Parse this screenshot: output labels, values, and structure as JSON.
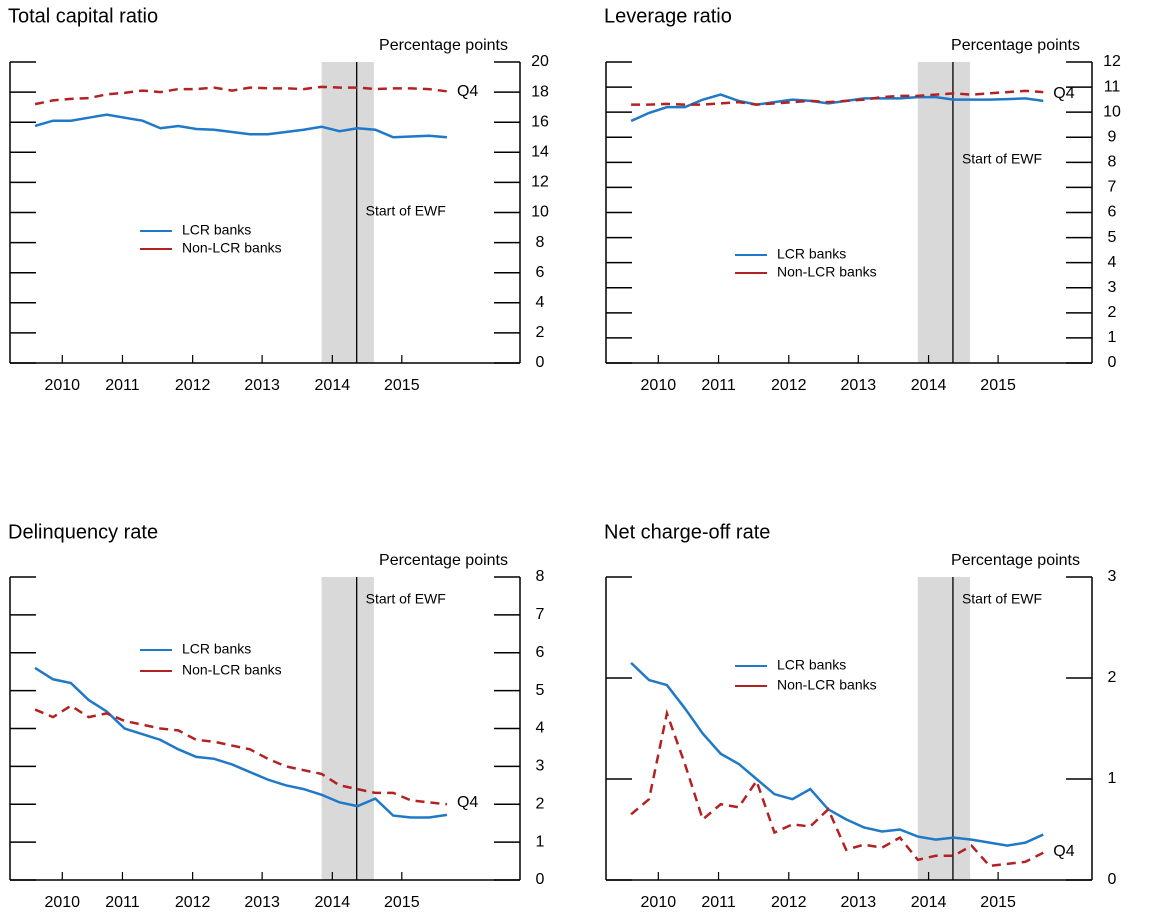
{
  "chart_data": [
    {
      "type": "line",
      "title": "Total capital ratio",
      "y_label": "Percentage points",
      "x": [
        2010,
        2010.25,
        2010.5,
        2010.75,
        2011,
        2011.25,
        2011.5,
        2011.75,
        2012,
        2012.25,
        2012.5,
        2012.75,
        2013,
        2013.25,
        2013.5,
        2013.75,
        2014,
        2014.25,
        2014.5,
        2014.75,
        2015,
        2015.25,
        2015.5,
        2015.75
      ],
      "series": [
        {
          "name": "LCR banks",
          "color": "#1f78c8",
          "style": "solid",
          "values": [
            15.75,
            16.1,
            16.1,
            16.3,
            16.5,
            16.3,
            16.1,
            15.6,
            15.75,
            15.55,
            15.5,
            15.35,
            15.2,
            15.2,
            15.35,
            15.5,
            15.7,
            15.4,
            15.6,
            15.5,
            15.0,
            15.05,
            15.1,
            15.0
          ]
        },
        {
          "name": "Non-LCR banks",
          "color": "#b22222",
          "style": "dashed",
          "values": [
            17.2,
            17.45,
            17.55,
            17.6,
            17.85,
            17.95,
            18.1,
            18.0,
            18.2,
            18.2,
            18.3,
            18.1,
            18.3,
            18.25,
            18.25,
            18.2,
            18.35,
            18.3,
            18.3,
            18.2,
            18.25,
            18.25,
            18.2,
            18.05
          ]
        }
      ],
      "xlim": [
        2009.65,
        2016.77
      ],
      "ylim": [
        0,
        20
      ],
      "yticks": [
        0,
        2,
        4,
        6,
        8,
        10,
        12,
        14,
        16,
        18,
        20
      ],
      "xticks": [
        {
          "value": 2010.38,
          "label": "2010"
        },
        {
          "value": 2011.22,
          "label": "2011"
        },
        {
          "value": 2012.2,
          "label": "2012"
        },
        {
          "value": 2013.17,
          "label": "2013"
        },
        {
          "value": 2014.15,
          "label": "2014"
        },
        {
          "value": 2015.12,
          "label": "2015"
        }
      ],
      "shaded_period": [
        2014.0,
        2014.73
      ],
      "event_x": 2014.49,
      "event_label": "Start of EWF",
      "end_label": "Q4"
    },
    {
      "type": "line",
      "title": "Leverage ratio",
      "y_label": "Percentage points",
      "x": [
        2010,
        2010.25,
        2010.5,
        2010.75,
        2011,
        2011.25,
        2011.5,
        2011.75,
        2012,
        2012.25,
        2012.5,
        2012.75,
        2013,
        2013.25,
        2013.5,
        2013.75,
        2014,
        2014.25,
        2014.5,
        2014.75,
        2015,
        2015.25,
        2015.5,
        2015.75
      ],
      "series": [
        {
          "name": "LCR banks",
          "color": "#1f78c8",
          "style": "solid",
          "values": [
            9.65,
            9.97,
            10.2,
            10.2,
            10.5,
            10.7,
            10.45,
            10.3,
            10.4,
            10.5,
            10.45,
            10.35,
            10.45,
            10.55,
            10.55,
            10.55,
            10.6,
            10.6,
            10.5,
            10.5,
            10.5,
            10.52,
            10.55,
            10.45
          ]
        },
        {
          "name": "Non-LCR banks",
          "color": "#b22222",
          "style": "dashed",
          "values": [
            10.3,
            10.3,
            10.33,
            10.3,
            10.3,
            10.35,
            10.4,
            10.3,
            10.35,
            10.4,
            10.45,
            10.4,
            10.45,
            10.5,
            10.6,
            10.65,
            10.65,
            10.7,
            10.75,
            10.7,
            10.75,
            10.8,
            10.85,
            10.8
          ]
        }
      ],
      "xlim": [
        2009.65,
        2016.43
      ],
      "ylim": [
        0,
        12
      ],
      "yticks": [
        0,
        1,
        2,
        3,
        4,
        5,
        6,
        7,
        8,
        9,
        10,
        11,
        12
      ],
      "xticks": [
        {
          "value": 2010.38,
          "label": "2010"
        },
        {
          "value": 2011.22,
          "label": "2011"
        },
        {
          "value": 2012.2,
          "label": "2012"
        },
        {
          "value": 2013.17,
          "label": "2013"
        },
        {
          "value": 2014.15,
          "label": "2014"
        },
        {
          "value": 2015.12,
          "label": "2015"
        }
      ],
      "shaded_period": [
        2014.0,
        2014.73
      ],
      "event_x": 2014.49,
      "event_label": "Start of EWF",
      "end_label": "Q4"
    },
    {
      "type": "line",
      "title": "Delinquency rate",
      "y_label": "Percentage points",
      "x": [
        2010,
        2010.25,
        2010.5,
        2010.75,
        2011,
        2011.25,
        2011.5,
        2011.75,
        2012,
        2012.25,
        2012.5,
        2012.75,
        2013,
        2013.25,
        2013.5,
        2013.75,
        2014,
        2014.25,
        2014.5,
        2014.75,
        2015,
        2015.25,
        2015.5,
        2015.75
      ],
      "series": [
        {
          "name": "LCR banks",
          "color": "#1f78c8",
          "style": "solid",
          "values": [
            5.6,
            5.3,
            5.2,
            4.75,
            4.45,
            4.0,
            3.85,
            3.7,
            3.45,
            3.25,
            3.2,
            3.05,
            2.85,
            2.65,
            2.5,
            2.4,
            2.25,
            2.05,
            1.95,
            2.15,
            1.7,
            1.65,
            1.65,
            1.72
          ]
        },
        {
          "name": "Non-LCR banks",
          "color": "#b22222",
          "style": "dashed",
          "values": [
            4.5,
            4.3,
            4.6,
            4.3,
            4.4,
            4.2,
            4.1,
            4.0,
            3.95,
            3.7,
            3.65,
            3.55,
            3.45,
            3.2,
            3.0,
            2.9,
            2.8,
            2.5,
            2.4,
            2.3,
            2.3,
            2.1,
            2.05,
            2.0
          ]
        }
      ],
      "xlim": [
        2009.65,
        2016.77
      ],
      "ylim": [
        0,
        8
      ],
      "yticks": [
        0,
        1,
        2,
        3,
        4,
        5,
        6,
        7,
        8
      ],
      "xticks": [
        {
          "value": 2010.38,
          "label": "2010"
        },
        {
          "value": 2011.22,
          "label": "2011"
        },
        {
          "value": 2012.2,
          "label": "2012"
        },
        {
          "value": 2013.17,
          "label": "2013"
        },
        {
          "value": 2014.15,
          "label": "2014"
        },
        {
          "value": 2015.12,
          "label": "2015"
        }
      ],
      "shaded_period": [
        2014.0,
        2014.73
      ],
      "event_x": 2014.49,
      "event_label": "Start of EWF",
      "end_label": "Q4"
    },
    {
      "type": "line",
      "title": "Net charge-off rate",
      "y_label": "Percentage points",
      "x": [
        2010,
        2010.25,
        2010.5,
        2010.75,
        2011,
        2011.25,
        2011.5,
        2011.75,
        2012,
        2012.25,
        2012.5,
        2012.75,
        2013,
        2013.25,
        2013.5,
        2013.75,
        2014,
        2014.25,
        2014.5,
        2014.75,
        2015,
        2015.25,
        2015.5,
        2015.75
      ],
      "series": [
        {
          "name": "LCR banks",
          "color": "#1f78c8",
          "style": "solid",
          "values": [
            2.15,
            1.98,
            1.93,
            1.7,
            1.45,
            1.25,
            1.15,
            1.0,
            0.85,
            0.8,
            0.9,
            0.7,
            0.6,
            0.52,
            0.48,
            0.5,
            0.43,
            0.4,
            0.42,
            0.4,
            0.37,
            0.34,
            0.37,
            0.45
          ]
        },
        {
          "name": "Non-LCR banks",
          "color": "#b22222",
          "style": "dashed",
          "values": [
            0.65,
            0.8,
            1.65,
            1.15,
            0.6,
            0.75,
            0.72,
            0.98,
            0.47,
            0.55,
            0.53,
            0.7,
            0.3,
            0.35,
            0.32,
            0.42,
            0.2,
            0.24,
            0.24,
            0.34,
            0.14,
            0.16,
            0.18,
            0.27
          ]
        }
      ],
      "xlim": [
        2009.65,
        2016.43
      ],
      "ylim": [
        0,
        3
      ],
      "yticks": [
        0,
        1,
        2,
        3
      ],
      "xticks": [
        {
          "value": 2010.38,
          "label": "2010"
        },
        {
          "value": 2011.22,
          "label": "2011"
        },
        {
          "value": 2012.2,
          "label": "2012"
        },
        {
          "value": 2013.17,
          "label": "2013"
        },
        {
          "value": 2014.15,
          "label": "2014"
        },
        {
          "value": 2015.12,
          "label": "2015"
        }
      ],
      "shaded_period": [
        2014.0,
        2014.73
      ],
      "event_x": 2014.49,
      "event_label": "Start of EWF",
      "end_label": "Q4"
    }
  ]
}
